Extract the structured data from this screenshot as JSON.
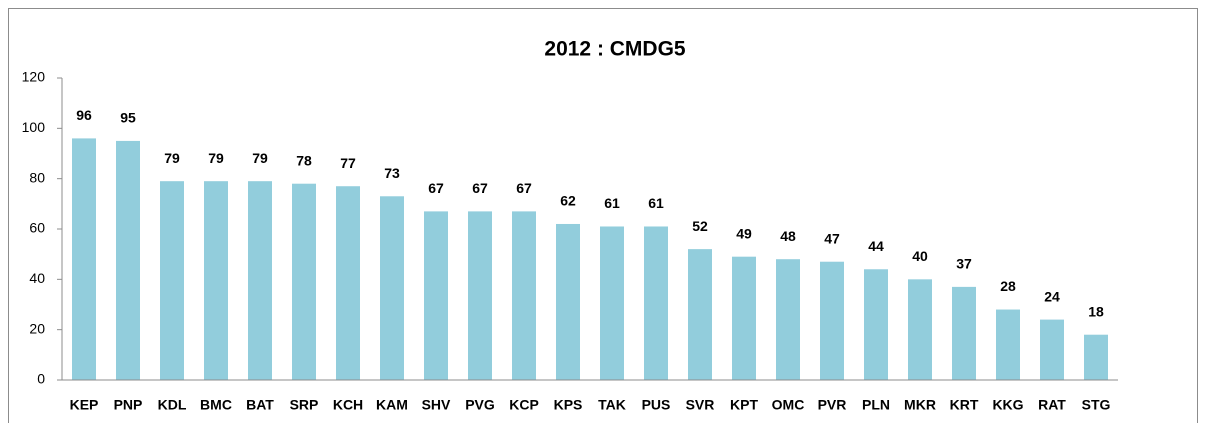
{
  "chart_data": {
    "type": "bar",
    "title": "2012 : CMDG5",
    "categories": [
      "KEP",
      "PNP",
      "KDL",
      "BMC",
      "BAT",
      "SRP",
      "KCH",
      "KAM",
      "SHV",
      "PVG",
      "KCP",
      "KPS",
      "TAK",
      "PUS",
      "SVR",
      "KPT",
      "OMC",
      "PVR",
      "PLN",
      "MKR",
      "KRT",
      "KKG",
      "RAT",
      "STG"
    ],
    "values": [
      96,
      95,
      79,
      79,
      79,
      78,
      77,
      73,
      67,
      67,
      67,
      62,
      61,
      61,
      52,
      49,
      48,
      47,
      44,
      40,
      37,
      28,
      24,
      18
    ],
    "color": "#92cddc",
    "ylim": [
      0,
      120
    ],
    "yticks": [
      0,
      20,
      40,
      60,
      80,
      100,
      120
    ],
    "grid": false
  }
}
